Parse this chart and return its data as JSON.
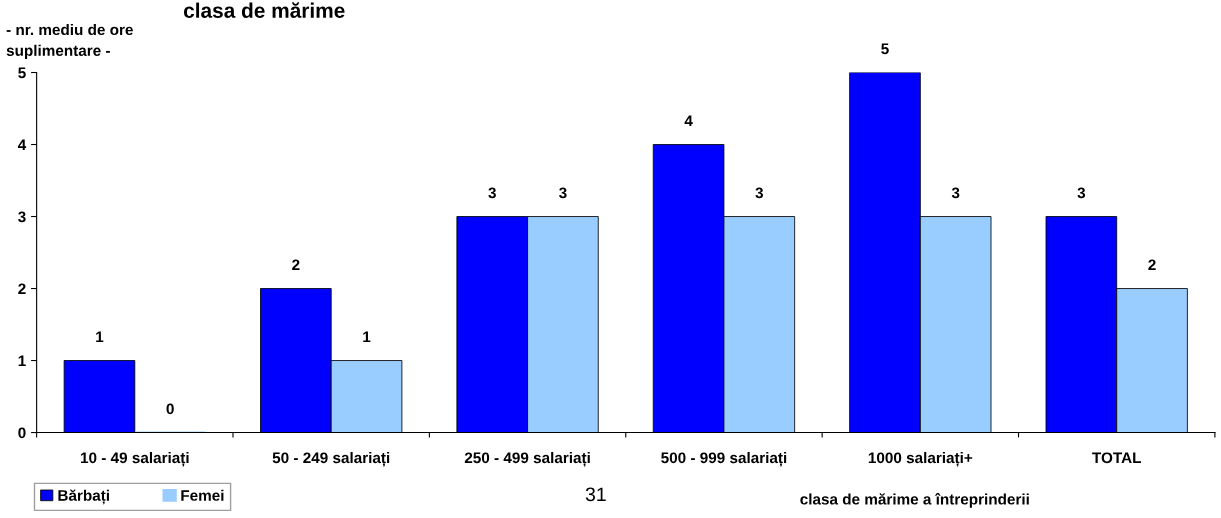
{
  "chart_data": {
    "type": "bar",
    "title": "clasa de mărime",
    "ylabel": "- nr. mediu de ore\nsuplimentare -",
    "xlabel": "clasa de mărime a întreprinderii",
    "categories": [
      "10 - 49 salariați",
      "50 - 249 salariați",
      "250 - 499 salariați",
      "500 - 999 salariați",
      "1000 salariați+",
      "TOTAL"
    ],
    "series": [
      {
        "name": "Bărbați",
        "color": "#0000ff",
        "values": [
          1,
          2,
          3,
          4,
          5,
          3
        ]
      },
      {
        "name": "Femei",
        "color": "#99ccff",
        "values": [
          0,
          1,
          3,
          3,
          3,
          2
        ]
      }
    ],
    "ylim": [
      0,
      5
    ],
    "yticks": [
      0,
      1,
      2,
      3,
      4,
      5
    ],
    "grid": false,
    "legend": "bottom left",
    "data_labels": true,
    "annotations": [
      "31"
    ]
  }
}
